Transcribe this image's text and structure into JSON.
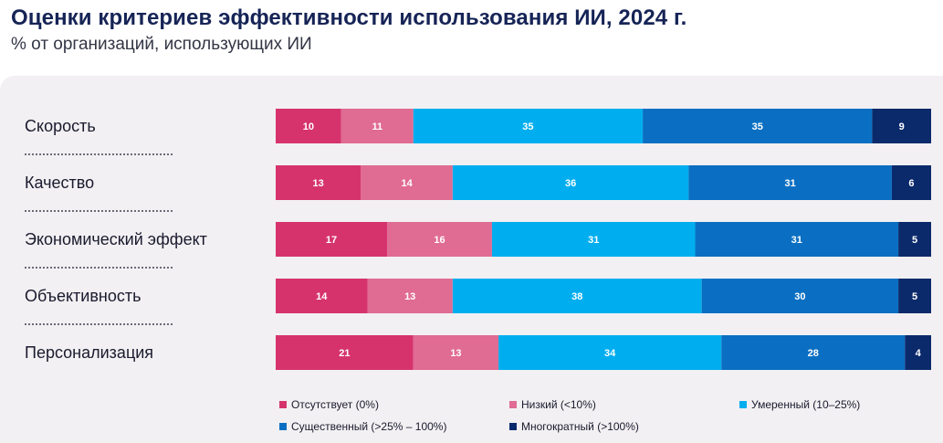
{
  "title": "Оценки критериев эффективности использования ИИ, 2024 г.",
  "subtitle": "% от организаций, использующих ИИ",
  "chart_data": {
    "type": "bar",
    "orientation": "horizontal",
    "stacked": true,
    "categories": [
      "Скорость",
      "Качество",
      "Экономический эффект",
      "Объективность",
      "Персонализация"
    ],
    "series": [
      {
        "name": "Отсутствует (0%)",
        "color": "#d6336c",
        "values": [
          10,
          13,
          17,
          14,
          21
        ]
      },
      {
        "name": "Низкий (<10%)",
        "color": "#e06b93",
        "values": [
          11,
          14,
          16,
          13,
          13
        ]
      },
      {
        "name": "Умеренный (10–25%)",
        "color": "#00aeef",
        "values": [
          35,
          36,
          31,
          38,
          34
        ]
      },
      {
        "name": "Существенный (>25% – 100%)",
        "color": "#0a6fc2",
        "values": [
          35,
          31,
          31,
          30,
          28
        ]
      },
      {
        "name": "Многократный (>100%)",
        "color": "#0b2a6b",
        "values": [
          9,
          6,
          5,
          5,
          4
        ]
      }
    ],
    "legend_position": "bottom",
    "grid": false
  }
}
